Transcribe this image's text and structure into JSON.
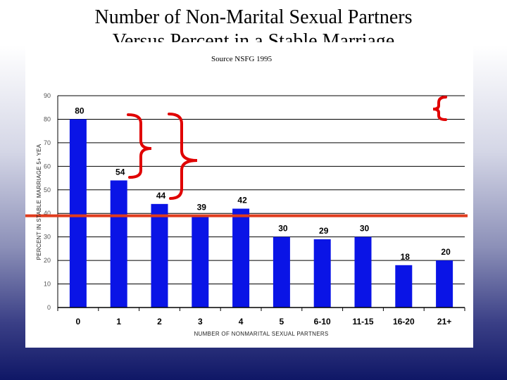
{
  "slide": {
    "title_line1": "Number of Non-Marital Sexual Partners",
    "title_line2": "Versus Percent in a Stable Marriage",
    "source": "Source NSFG 1995"
  },
  "chart_data": {
    "type": "bar",
    "title": "Number of Non-Marital Sexual Partners Versus Percent in a Stable Marriage",
    "xlabel": "NUMBER OF NONMARITAL SEXUAL PARTNERS",
    "ylabel": "PERCENT IN STABLE MARRIAGE 5+ YEA",
    "categories": [
      "0",
      "1",
      "2",
      "3",
      "4",
      "5",
      "6-10",
      "11-15",
      "16-20",
      "21+"
    ],
    "values": [
      80,
      54,
      44,
      39,
      42,
      30,
      29,
      30,
      18,
      20
    ],
    "data_labels": [
      "80",
      "54",
      "44",
      "39",
      "42",
      "30",
      "29",
      "30",
      "18",
      "20"
    ],
    "ylim": [
      0,
      90
    ],
    "yticks": [
      "0",
      "10",
      "20",
      "30",
      "40",
      "50",
      "60",
      "70",
      "80",
      "90"
    ],
    "grid": true,
    "reference_line": 39,
    "bar_color": "#0a14e6",
    "reference_line_color": "#e03c1e",
    "annotation_color": "#e00000"
  }
}
